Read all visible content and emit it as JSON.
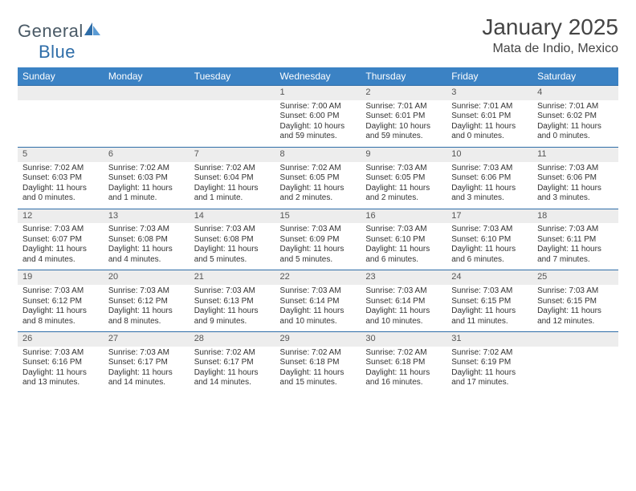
{
  "brand": {
    "text_a": "General",
    "text_b": "Blue",
    "sail_color": "#2e6da8",
    "text_color": "#4a5a66"
  },
  "header": {
    "title": "January 2025",
    "location": "Mata de Indio, Mexico"
  },
  "styling": {
    "header_bg": "#3b82c4",
    "header_text": "#ffffff",
    "row_divider": "#2e6da8",
    "daynum_bg": "#ededed",
    "page_bg": "#ffffff",
    "body_text": "#333333",
    "font_family": "Arial",
    "title_fontsize_pt": 21,
    "location_fontsize_pt": 12,
    "dayheader_fontsize_pt": 9,
    "cell_fontsize_pt": 7.5
  },
  "day_headers": [
    "Sunday",
    "Monday",
    "Tuesday",
    "Wednesday",
    "Thursday",
    "Friday",
    "Saturday"
  ],
  "weeks": [
    [
      {
        "n": "",
        "lines": [
          "",
          "",
          "",
          ""
        ]
      },
      {
        "n": "",
        "lines": [
          "",
          "",
          "",
          ""
        ]
      },
      {
        "n": "",
        "lines": [
          "",
          "",
          "",
          ""
        ]
      },
      {
        "n": "1",
        "lines": [
          "Sunrise: 7:00 AM",
          "Sunset: 6:00 PM",
          "Daylight: 10 hours",
          "and 59 minutes."
        ]
      },
      {
        "n": "2",
        "lines": [
          "Sunrise: 7:01 AM",
          "Sunset: 6:01 PM",
          "Daylight: 10 hours",
          "and 59 minutes."
        ]
      },
      {
        "n": "3",
        "lines": [
          "Sunrise: 7:01 AM",
          "Sunset: 6:01 PM",
          "Daylight: 11 hours",
          "and 0 minutes."
        ]
      },
      {
        "n": "4",
        "lines": [
          "Sunrise: 7:01 AM",
          "Sunset: 6:02 PM",
          "Daylight: 11 hours",
          "and 0 minutes."
        ]
      }
    ],
    [
      {
        "n": "5",
        "lines": [
          "Sunrise: 7:02 AM",
          "Sunset: 6:03 PM",
          "Daylight: 11 hours",
          "and 0 minutes."
        ]
      },
      {
        "n": "6",
        "lines": [
          "Sunrise: 7:02 AM",
          "Sunset: 6:03 PM",
          "Daylight: 11 hours",
          "and 1 minute."
        ]
      },
      {
        "n": "7",
        "lines": [
          "Sunrise: 7:02 AM",
          "Sunset: 6:04 PM",
          "Daylight: 11 hours",
          "and 1 minute."
        ]
      },
      {
        "n": "8",
        "lines": [
          "Sunrise: 7:02 AM",
          "Sunset: 6:05 PM",
          "Daylight: 11 hours",
          "and 2 minutes."
        ]
      },
      {
        "n": "9",
        "lines": [
          "Sunrise: 7:03 AM",
          "Sunset: 6:05 PM",
          "Daylight: 11 hours",
          "and 2 minutes."
        ]
      },
      {
        "n": "10",
        "lines": [
          "Sunrise: 7:03 AM",
          "Sunset: 6:06 PM",
          "Daylight: 11 hours",
          "and 3 minutes."
        ]
      },
      {
        "n": "11",
        "lines": [
          "Sunrise: 7:03 AM",
          "Sunset: 6:06 PM",
          "Daylight: 11 hours",
          "and 3 minutes."
        ]
      }
    ],
    [
      {
        "n": "12",
        "lines": [
          "Sunrise: 7:03 AM",
          "Sunset: 6:07 PM",
          "Daylight: 11 hours",
          "and 4 minutes."
        ]
      },
      {
        "n": "13",
        "lines": [
          "Sunrise: 7:03 AM",
          "Sunset: 6:08 PM",
          "Daylight: 11 hours",
          "and 4 minutes."
        ]
      },
      {
        "n": "14",
        "lines": [
          "Sunrise: 7:03 AM",
          "Sunset: 6:08 PM",
          "Daylight: 11 hours",
          "and 5 minutes."
        ]
      },
      {
        "n": "15",
        "lines": [
          "Sunrise: 7:03 AM",
          "Sunset: 6:09 PM",
          "Daylight: 11 hours",
          "and 5 minutes."
        ]
      },
      {
        "n": "16",
        "lines": [
          "Sunrise: 7:03 AM",
          "Sunset: 6:10 PM",
          "Daylight: 11 hours",
          "and 6 minutes."
        ]
      },
      {
        "n": "17",
        "lines": [
          "Sunrise: 7:03 AM",
          "Sunset: 6:10 PM",
          "Daylight: 11 hours",
          "and 6 minutes."
        ]
      },
      {
        "n": "18",
        "lines": [
          "Sunrise: 7:03 AM",
          "Sunset: 6:11 PM",
          "Daylight: 11 hours",
          "and 7 minutes."
        ]
      }
    ],
    [
      {
        "n": "19",
        "lines": [
          "Sunrise: 7:03 AM",
          "Sunset: 6:12 PM",
          "Daylight: 11 hours",
          "and 8 minutes."
        ]
      },
      {
        "n": "20",
        "lines": [
          "Sunrise: 7:03 AM",
          "Sunset: 6:12 PM",
          "Daylight: 11 hours",
          "and 8 minutes."
        ]
      },
      {
        "n": "21",
        "lines": [
          "Sunrise: 7:03 AM",
          "Sunset: 6:13 PM",
          "Daylight: 11 hours",
          "and 9 minutes."
        ]
      },
      {
        "n": "22",
        "lines": [
          "Sunrise: 7:03 AM",
          "Sunset: 6:14 PM",
          "Daylight: 11 hours",
          "and 10 minutes."
        ]
      },
      {
        "n": "23",
        "lines": [
          "Sunrise: 7:03 AM",
          "Sunset: 6:14 PM",
          "Daylight: 11 hours",
          "and 10 minutes."
        ]
      },
      {
        "n": "24",
        "lines": [
          "Sunrise: 7:03 AM",
          "Sunset: 6:15 PM",
          "Daylight: 11 hours",
          "and 11 minutes."
        ]
      },
      {
        "n": "25",
        "lines": [
          "Sunrise: 7:03 AM",
          "Sunset: 6:15 PM",
          "Daylight: 11 hours",
          "and 12 minutes."
        ]
      }
    ],
    [
      {
        "n": "26",
        "lines": [
          "Sunrise: 7:03 AM",
          "Sunset: 6:16 PM",
          "Daylight: 11 hours",
          "and 13 minutes."
        ]
      },
      {
        "n": "27",
        "lines": [
          "Sunrise: 7:03 AM",
          "Sunset: 6:17 PM",
          "Daylight: 11 hours",
          "and 14 minutes."
        ]
      },
      {
        "n": "28",
        "lines": [
          "Sunrise: 7:02 AM",
          "Sunset: 6:17 PM",
          "Daylight: 11 hours",
          "and 14 minutes."
        ]
      },
      {
        "n": "29",
        "lines": [
          "Sunrise: 7:02 AM",
          "Sunset: 6:18 PM",
          "Daylight: 11 hours",
          "and 15 minutes."
        ]
      },
      {
        "n": "30",
        "lines": [
          "Sunrise: 7:02 AM",
          "Sunset: 6:18 PM",
          "Daylight: 11 hours",
          "and 16 minutes."
        ]
      },
      {
        "n": "31",
        "lines": [
          "Sunrise: 7:02 AM",
          "Sunset: 6:19 PM",
          "Daylight: 11 hours",
          "and 17 minutes."
        ]
      },
      {
        "n": "",
        "lines": [
          "",
          "",
          "",
          ""
        ]
      }
    ]
  ]
}
